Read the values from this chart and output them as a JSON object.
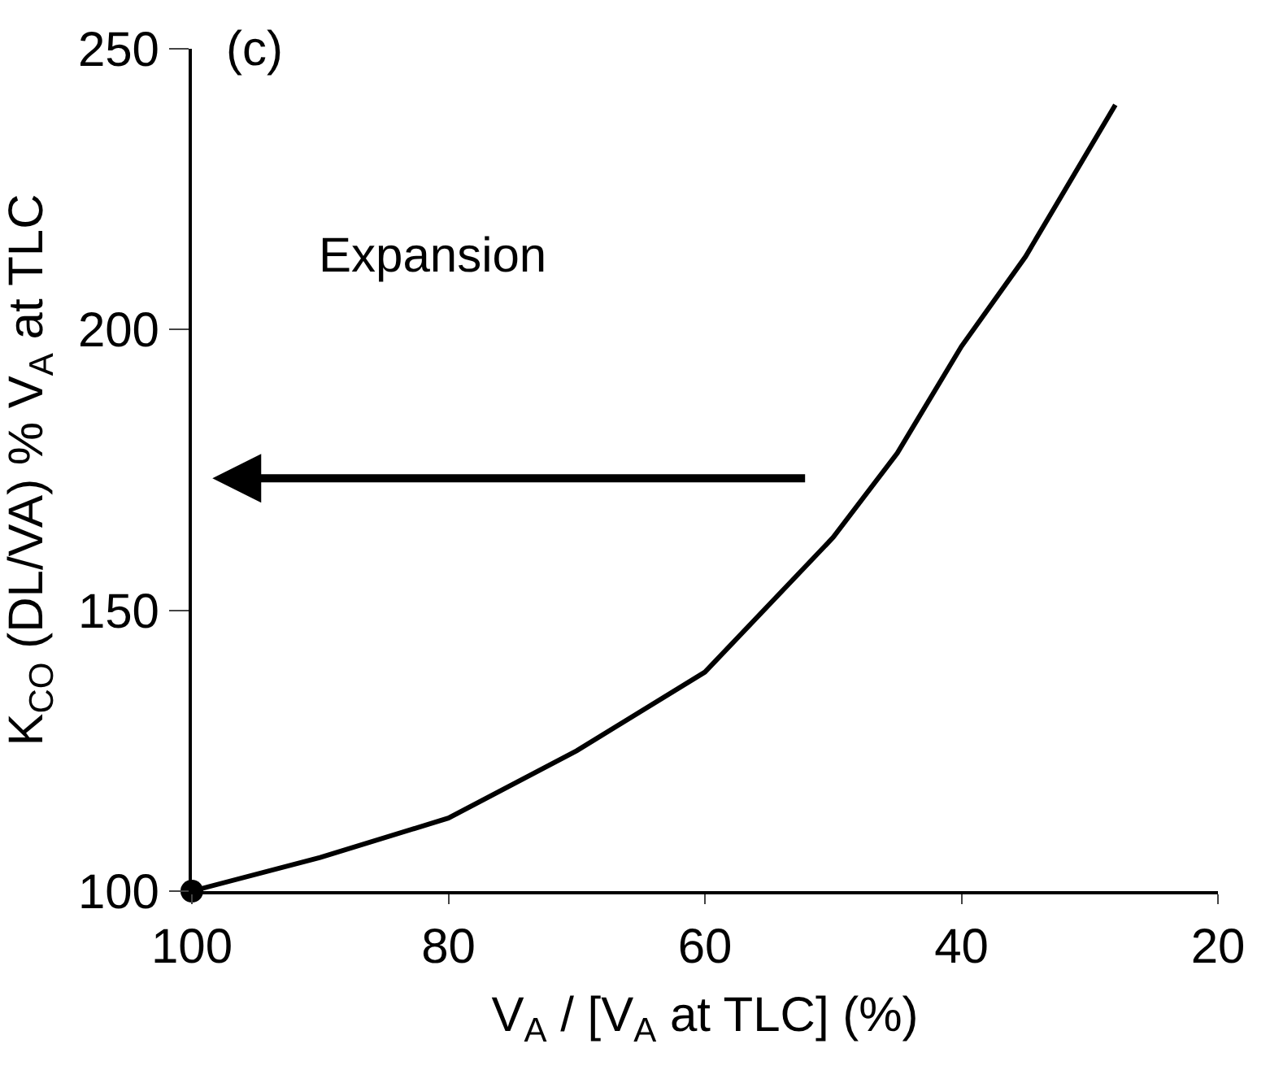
{
  "chart_data": {
    "type": "line",
    "title": "(c)",
    "xlabel": "V$_{A}$ / [V$_{A}$ at TLC] (%)",
    "ylabel": "K$_{CO}$ (DL/VA) % V$_{A}$ at TLC",
    "annotations": [
      "Expansion"
    ],
    "series": [
      {
        "color": "#000000",
        "x": [
          100,
          90,
          80,
          70,
          60,
          50,
          45,
          40,
          35,
          28
        ],
        "values": [
          100,
          106,
          113,
          125,
          139,
          163,
          178,
          197,
          213,
          240
        ]
      },
      {
        "type": "scatter",
        "color": "#000000",
        "x": [
          100
        ],
        "values": [
          100
        ]
      }
    ],
    "xlim": [
      100,
      20
    ],
    "ylim": [
      100,
      250
    ],
    "xticks": [
      100,
      80,
      60,
      40,
      20
    ],
    "yticks": [
      100,
      150,
      200,
      250
    ],
    "grid": false
  }
}
